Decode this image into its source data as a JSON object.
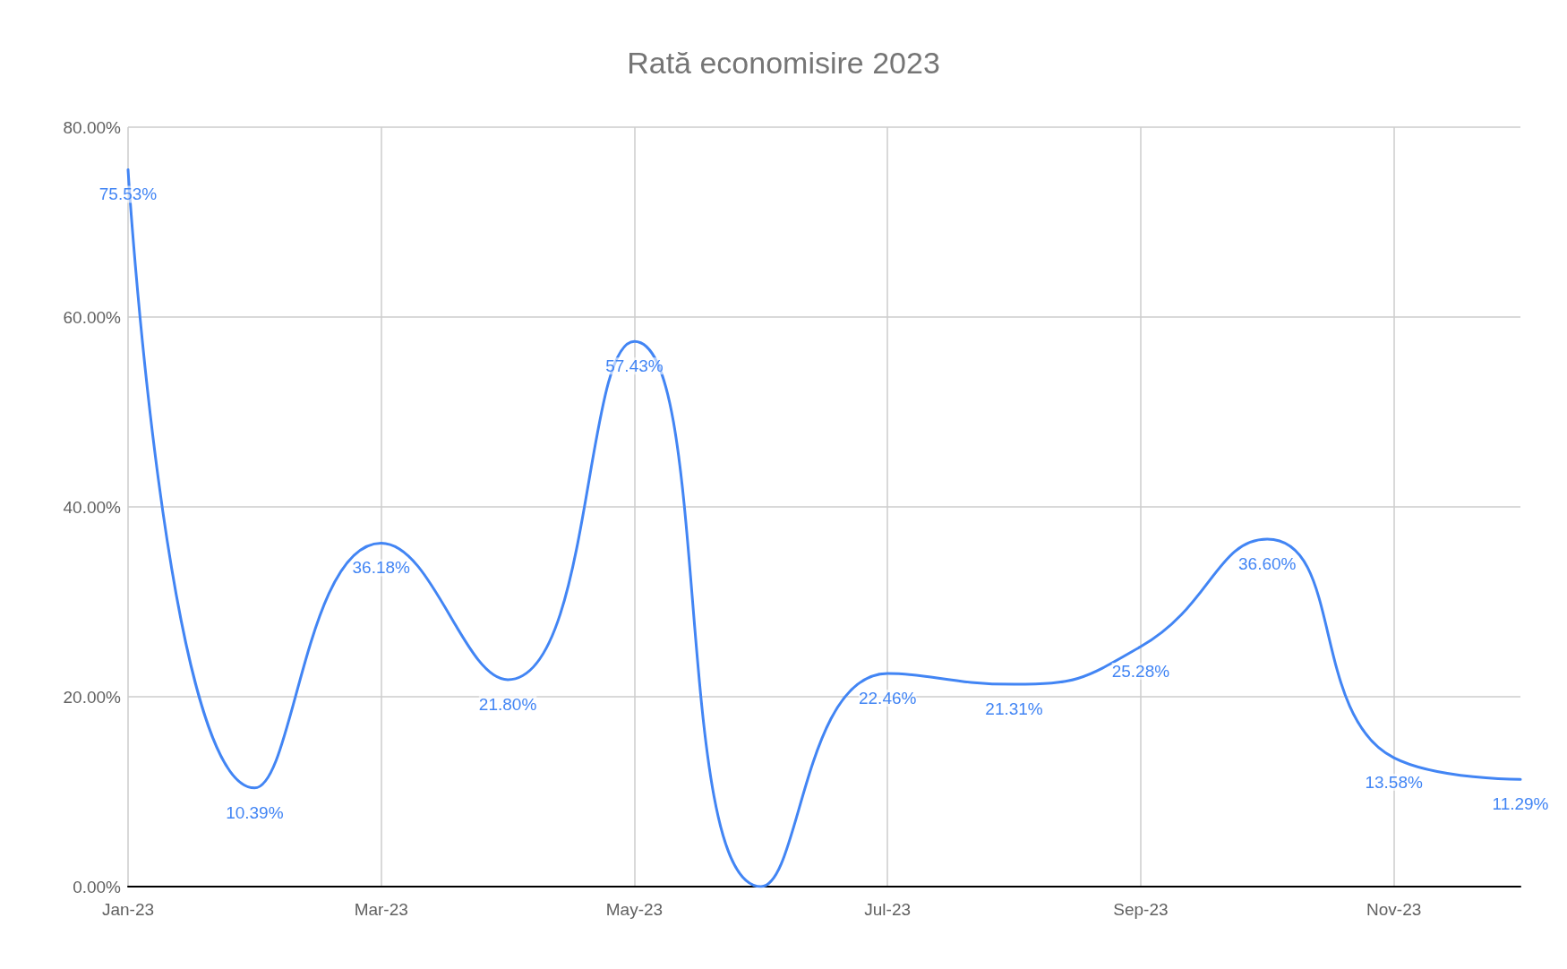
{
  "chart_data": {
    "type": "line",
    "title": "Rată economisire 2023",
    "categories": [
      "Jan-23",
      null,
      "Mar-23",
      null,
      "May-23",
      null,
      "Jul-23",
      null,
      "Sep-23",
      null,
      "Nov-23",
      null
    ],
    "series": [
      {
        "color": "#4285f4",
        "values": [
          75.53,
          10.39,
          36.18,
          21.8,
          57.43,
          0,
          22.46,
          21.31,
          25.28,
          36.6,
          13.58,
          11.29
        ],
        "value_labels": [
          "75.53%",
          "10.39%",
          "36.18%",
          "21.80%",
          "57.43%",
          null,
          "22.46%",
          "21.31%",
          "25.28%",
          "36.60%",
          "13.58%",
          "11.29%"
        ]
      }
    ],
    "ylim": [
      0,
      80
    ],
    "yticks": [
      {
        "value": 0,
        "label": "0.00%"
      },
      {
        "value": 20,
        "label": "20.00%"
      },
      {
        "value": 40,
        "label": "40.00%"
      },
      {
        "value": 60,
        "label": "60.00%"
      },
      {
        "value": 80,
        "label": "80.00%"
      }
    ],
    "grid": true,
    "marker": "none",
    "line_style": "solid"
  }
}
